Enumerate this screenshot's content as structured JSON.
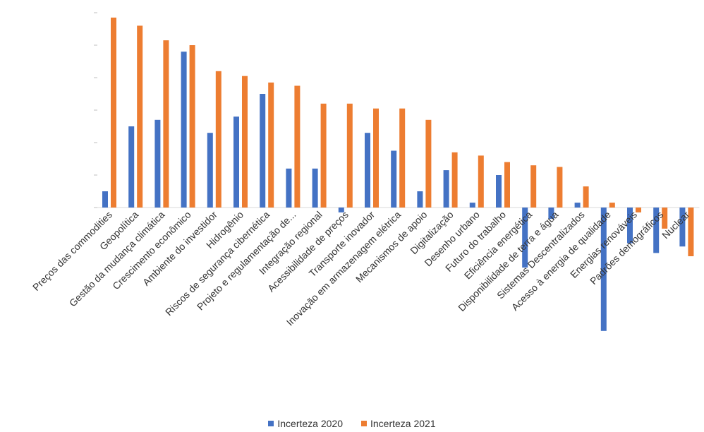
{
  "chart_data": {
    "type": "bar",
    "categories": [
      "Preços das commodities",
      "Geopolítica",
      "Gestão da mudança climática",
      "Crescimento econômico",
      "Ambiente do investidor",
      "Hidrogênio",
      "Riscos de segurança cibernética",
      "Projeto e regulamentação de...",
      "Integração regional",
      "Acessibilidade de preços",
      "Transporte inovador",
      "Inovação em armazenagem elétrica",
      "Mecanismos de apoio",
      "Digitalização",
      "Desenho urbano",
      "Futuro do trabalho",
      "Eficiência energética",
      "Disponibilidade de terra e água",
      "Sistemas Descentralizados",
      "Acesso à energia de qualidade",
      "Energias renováveis",
      "Padrões demográficos",
      "Nuclear"
    ],
    "series": [
      {
        "name": "Incerteza 2020",
        "color": "#4472c4",
        "values": [
          0.5,
          2.5,
          2.7,
          4.8,
          2.3,
          2.8,
          3.5,
          1.2,
          1.2,
          -0.15,
          2.3,
          1.75,
          0.5,
          1.15,
          0.15,
          1.0,
          -1.85,
          -0.35,
          0.15,
          -3.8,
          -1.1,
          -1.4,
          -1.2
        ]
      },
      {
        "name": "Incerteza 2021",
        "color": "#ed7d31",
        "values": [
          5.85,
          5.6,
          5.15,
          5.0,
          4.2,
          4.05,
          3.85,
          3.75,
          3.2,
          3.2,
          3.05,
          3.05,
          2.7,
          1.7,
          1.6,
          1.4,
          1.3,
          1.25,
          0.65,
          0.15,
          -0.15,
          -0.65,
          -1.5
        ]
      }
    ],
    "ylim": [
      -4,
      6
    ],
    "grid": false,
    "legend_position": "bottom"
  }
}
